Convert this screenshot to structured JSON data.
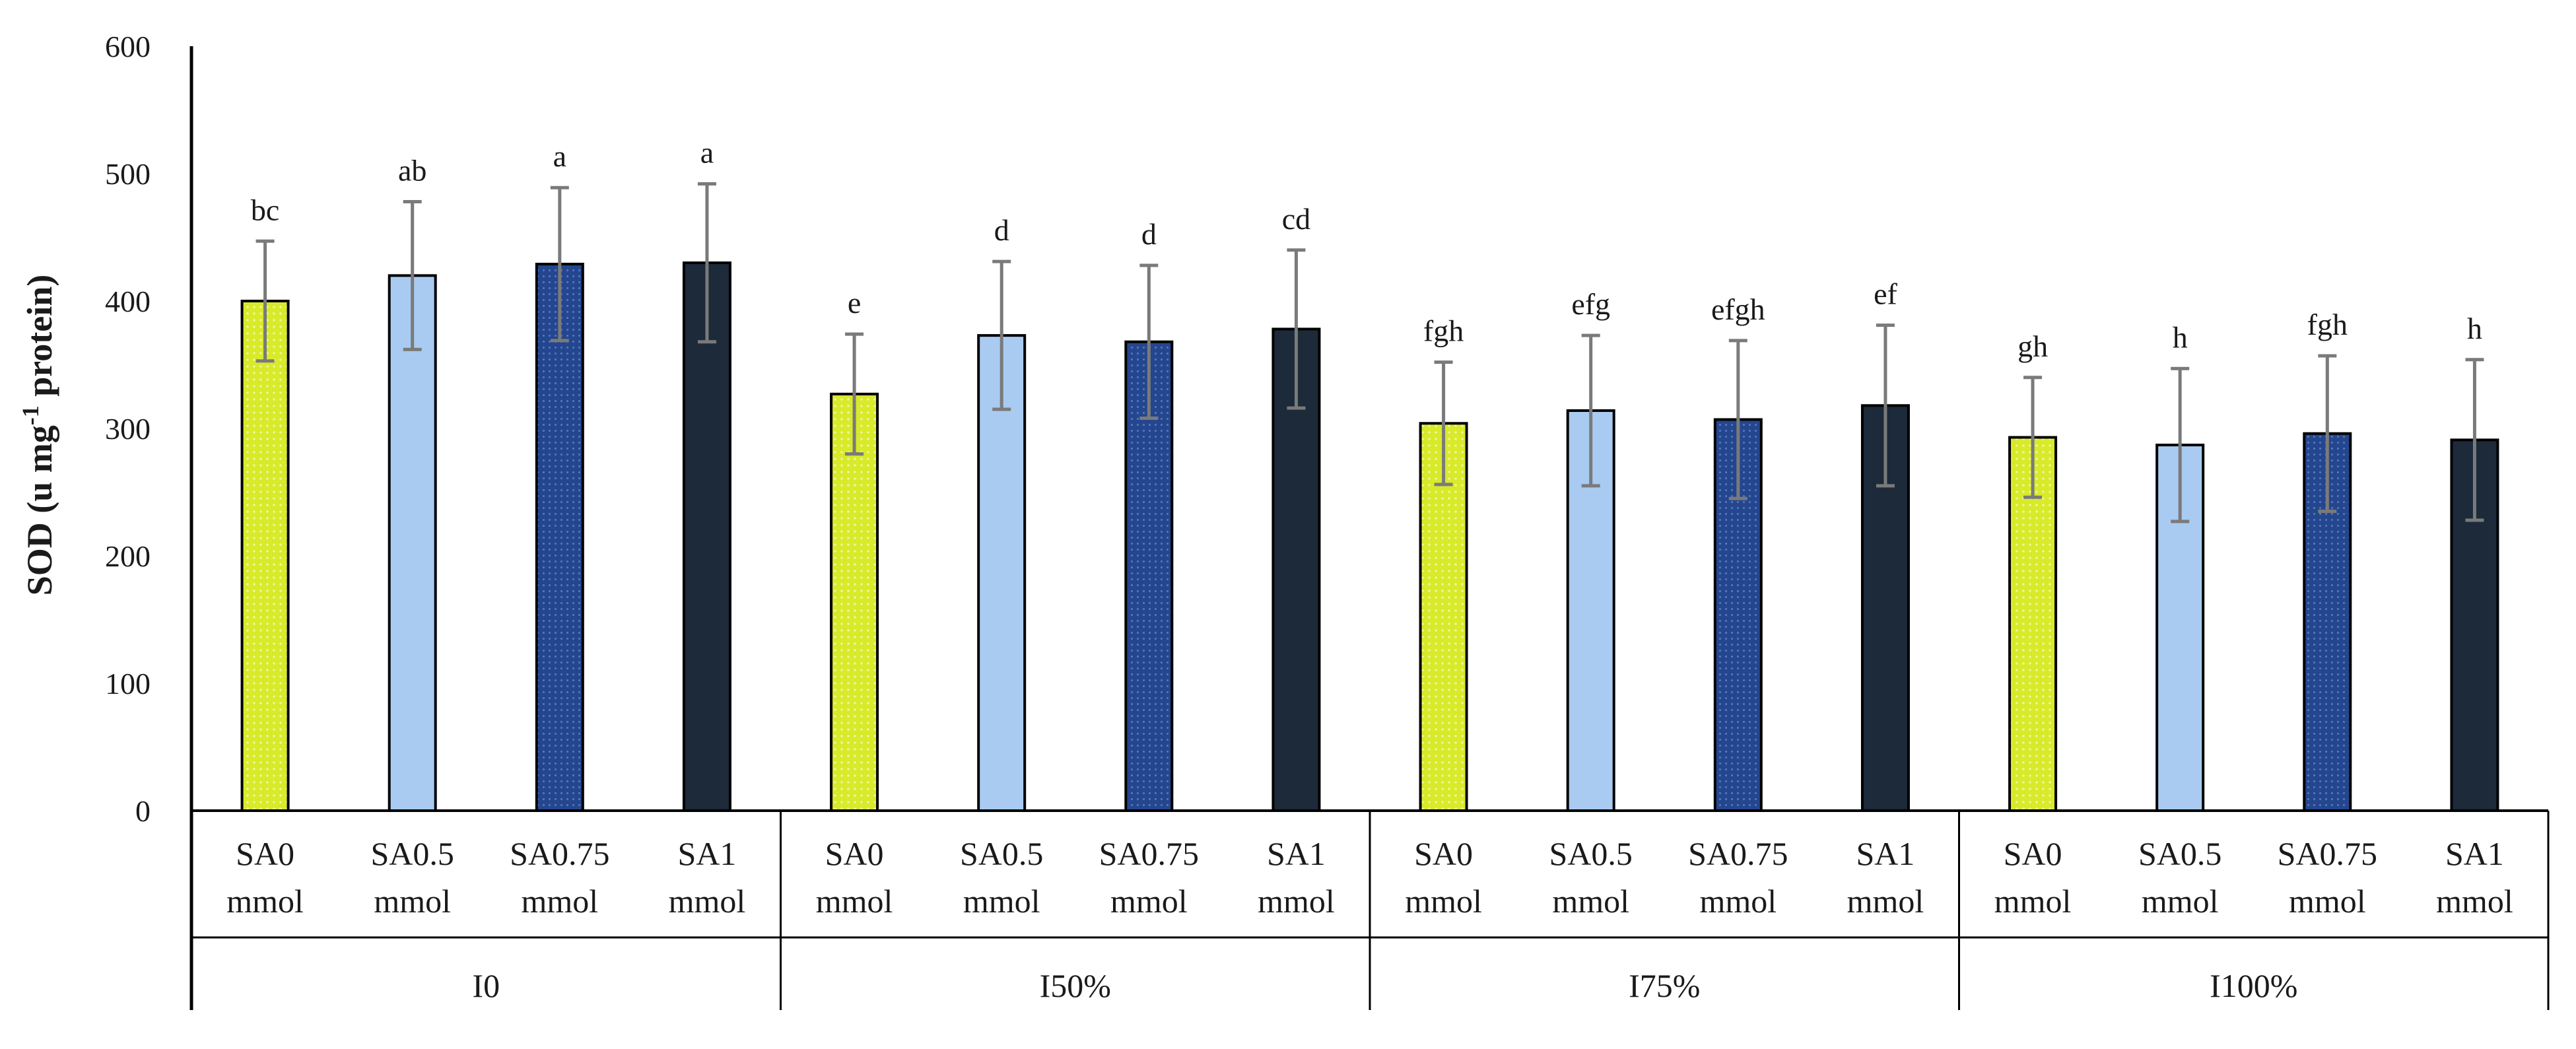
{
  "chart_data": {
    "type": "bar",
    "title": "",
    "xlabel": "",
    "ylabel": "SOD (u mg",
    "ylabel_sup": "-1",
    "ylabel_suffix": " protein)",
    "ylim": [
      0,
      600
    ],
    "yticks": [
      "0",
      "100",
      "200",
      "300",
      "400",
      "500",
      "600"
    ],
    "grid": false,
    "legend": "none",
    "groups": [
      "I0",
      "I50%",
      "I75%",
      "I100%"
    ],
    "categories": [
      {
        "line1": "SA0",
        "line2": "mmol"
      },
      {
        "line1": "SA0.5",
        "line2": "mmol"
      },
      {
        "line1": "SA0.75",
        "line2": "mmol"
      },
      {
        "line1": "SA1",
        "line2": "mmol"
      }
    ],
    "series": [
      {
        "name": "SA0 mmol",
        "color": "#d8ea2a",
        "values": [
          400,
          327,
          304,
          293
        ],
        "errors": [
          47,
          47,
          48,
          47
        ],
        "letters": [
          "bc",
          "e",
          "fgh",
          "gh"
        ]
      },
      {
        "name": "SA0.5 mmol",
        "color": "#a9cbf2",
        "values": [
          420,
          373,
          314,
          287
        ],
        "errors": [
          58,
          58,
          59,
          60
        ],
        "letters": [
          "ab",
          "d",
          "efg",
          "h"
        ]
      },
      {
        "name": "SA0.75 mmol",
        "color": "#24468f",
        "values": [
          429,
          368,
          307,
          296
        ],
        "errors": [
          60,
          60,
          62,
          61
        ],
        "letters": [
          "a",
          "d",
          "efgh",
          "fgh"
        ]
      },
      {
        "name": "SA1 mmol",
        "color": "#1c2a3a",
        "values": [
          430,
          378,
          318,
          291
        ],
        "errors": [
          62,
          62,
          63,
          63
        ],
        "letters": [
          "a",
          "cd",
          "ef",
          "h"
        ]
      }
    ]
  }
}
